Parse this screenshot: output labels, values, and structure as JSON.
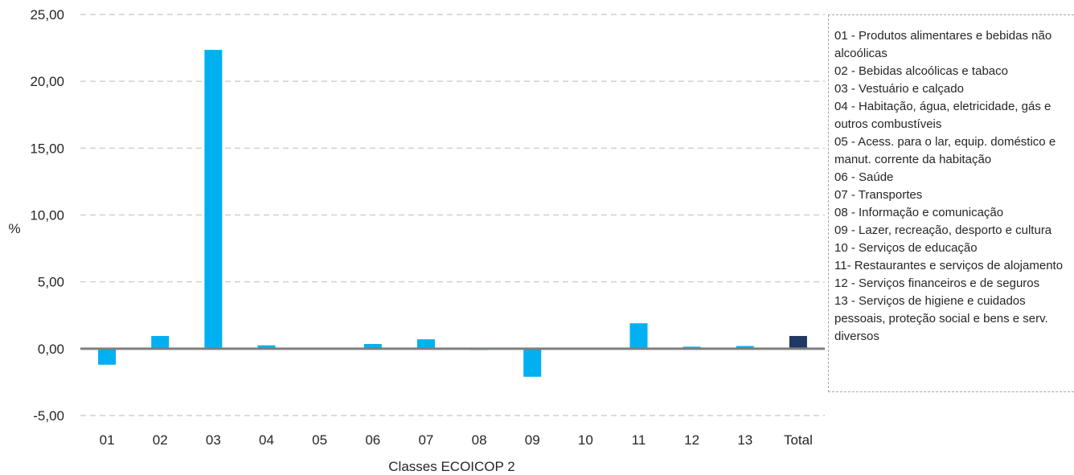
{
  "colors": {
    "bar": "#00b0f0",
    "total_bar": "#1f3864",
    "grid": "#d0d0d0",
    "zero_line": "#7f7f7f",
    "legend_border": "#a6a6a6"
  },
  "chart_data": {
    "type": "bar",
    "xlabel": "Classes ECOICOP 2",
    "ylabel": "%",
    "ylim": [
      -5,
      25
    ],
    "y_ticks": [
      "25,00",
      "20,00",
      "15,00",
      "10,00",
      "5,00",
      "0,00",
      "-5,00"
    ],
    "grid": true,
    "legend_position": "right",
    "categories": [
      "01",
      "02",
      "03",
      "04",
      "05",
      "06",
      "07",
      "08",
      "09",
      "10",
      "11",
      "12",
      "13",
      "Total"
    ],
    "values": [
      -1.2,
      0.95,
      22.35,
      0.25,
      0.0,
      0.35,
      0.7,
      -0.1,
      -2.1,
      0.0,
      1.9,
      0.15,
      0.2,
      0.95
    ],
    "highlight_category": "Total"
  },
  "legend": {
    "items": [
      "01 - Produtos alimentares e bebidas não alcoólicas",
      "02 - Bebidas alcoólicas e tabaco",
      "03 - Vestuário e calçado",
      "04 - Habitação, água, eletricidade, gás e outros combustíveis",
      "05 - Acess. para o lar, equip. doméstico e manut. corrente da habitação",
      "06 - Saúde",
      "07 - Transportes",
      "08 - Informação e comunicação",
      "09 - Lazer, recreação, desporto e cultura",
      "10 - Serviços de educação",
      "11- Restaurantes e serviços de alojamento",
      "12 - Serviços financeiros e de seguros",
      "13 - Serviços de higiene e cuidados pessoais, proteção social e bens e serv. diversos"
    ]
  }
}
